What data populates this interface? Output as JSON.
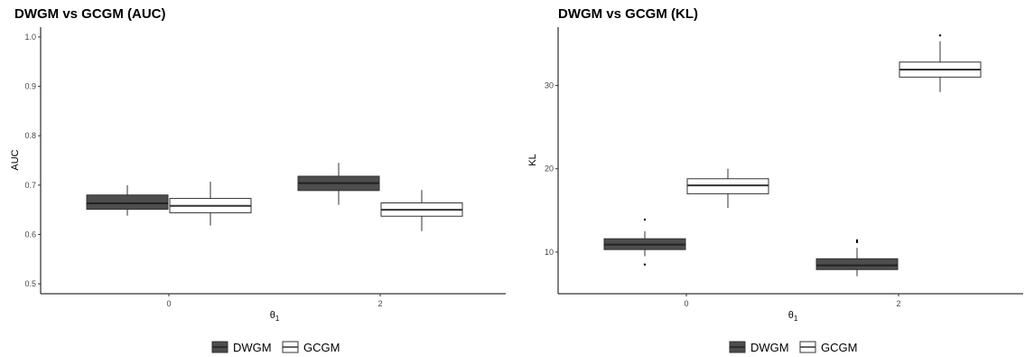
{
  "colors": {
    "DWGM": "#4d4d4d",
    "GCGM": "#ffffff",
    "stroke": "#333333",
    "median_light": "#333333",
    "median_dark": "#222222"
  },
  "chart_data": [
    {
      "type": "boxplot",
      "title": "DWGM vs GCGM (AUC)",
      "xlabel": "θ",
      "xlabel_sub": "1",
      "ylabel": "AUC",
      "categories": [
        "0",
        "2"
      ],
      "ylim": [
        0.48,
        1.02
      ],
      "yticks": [
        "0.5",
        "0.6",
        "0.7",
        "0.8",
        "0.9",
        "1.0"
      ],
      "grid": false,
      "legend": "bottom",
      "series": [
        {
          "name": "DWGM",
          "boxes": [
            {
              "whisker_low": 0.638,
              "q1": 0.651,
              "median": 0.663,
              "q3": 0.68,
              "whisker_high": 0.7,
              "outliers": []
            },
            {
              "whisker_low": 0.66,
              "q1": 0.689,
              "median": 0.704,
              "q3": 0.718,
              "whisker_high": 0.745,
              "outliers": []
            }
          ]
        },
        {
          "name": "GCGM",
          "boxes": [
            {
              "whisker_low": 0.618,
              "q1": 0.644,
              "median": 0.658,
              "q3": 0.673,
              "whisker_high": 0.707,
              "outliers": []
            },
            {
              "whisker_low": 0.607,
              "q1": 0.637,
              "median": 0.65,
              "q3": 0.664,
              "whisker_high": 0.69,
              "outliers": []
            }
          ]
        }
      ]
    },
    {
      "type": "boxplot",
      "title": "DWGM vs GCGM (KL)",
      "xlabel": "θ",
      "xlabel_sub": "1",
      "ylabel": "KL",
      "categories": [
        "0",
        "2"
      ],
      "ylim": [
        5,
        37
      ],
      "yticks": [
        "10",
        "20",
        "30"
      ],
      "grid": false,
      "legend": "bottom",
      "series": [
        {
          "name": "DWGM",
          "boxes": [
            {
              "whisker_low": 9.5,
              "q1": 10.3,
              "median": 10.9,
              "q3": 11.6,
              "whisker_high": 12.5,
              "outliers": [
                8.5,
                13.9
              ]
            },
            {
              "whisker_low": 7.1,
              "q1": 7.9,
              "median": 8.4,
              "q3": 9.2,
              "whisker_high": 10.5,
              "outliers": [
                11.2,
                11.4
              ]
            }
          ]
        },
        {
          "name": "GCGM",
          "boxes": [
            {
              "whisker_low": 15.3,
              "q1": 17.0,
              "median": 18.0,
              "q3": 18.8,
              "whisker_high": 20.0,
              "outliers": []
            },
            {
              "whisker_low": 29.2,
              "q1": 31.0,
              "median": 31.9,
              "q3": 32.8,
              "whisker_high": 35.3,
              "outliers": [
                36.0
              ]
            }
          ]
        }
      ]
    }
  ]
}
